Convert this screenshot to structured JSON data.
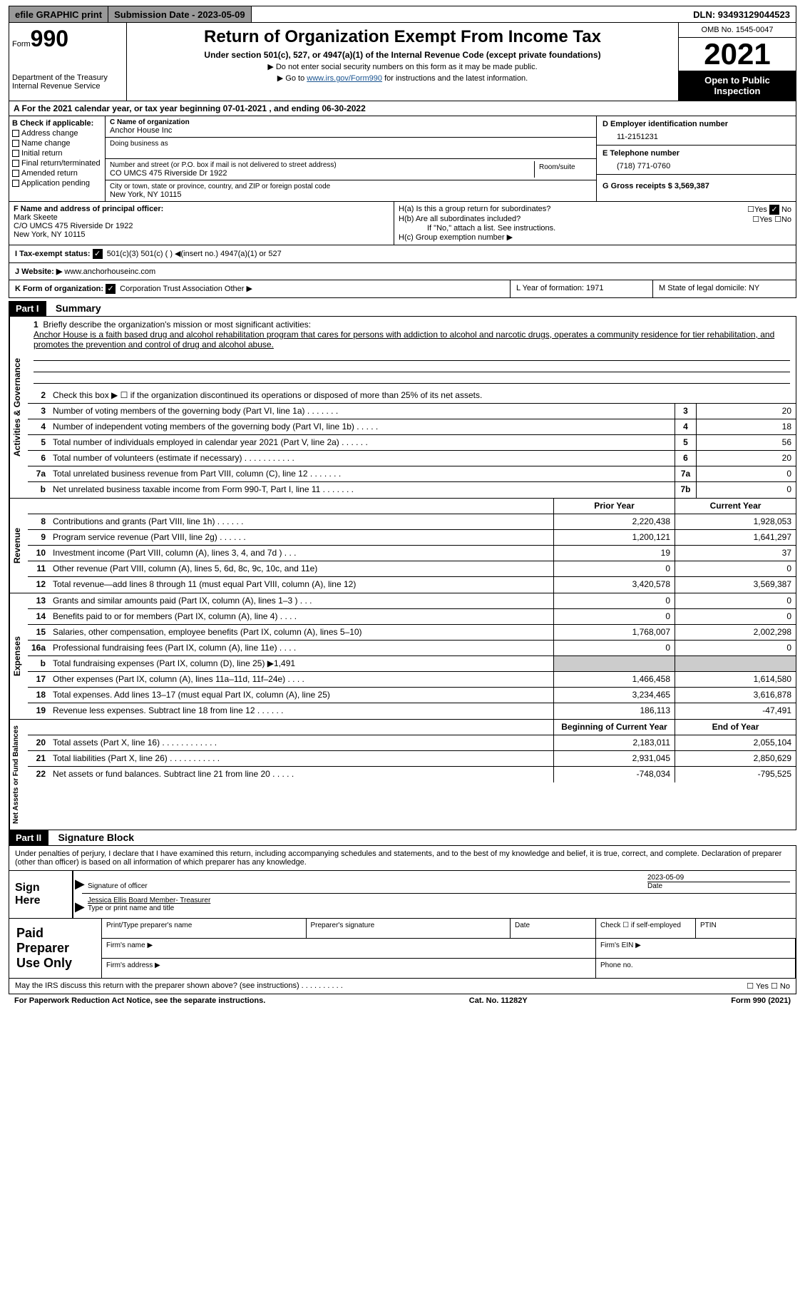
{
  "topbar": {
    "efile": "efile GRAPHIC print",
    "submission": "Submission Date - 2023-05-09",
    "dln": "DLN: 93493129044523"
  },
  "header": {
    "form_label": "Form",
    "form_num": "990",
    "dept": "Department of the Treasury Internal Revenue Service",
    "title": "Return of Organization Exempt From Income Tax",
    "sub": "Under section 501(c), 527, or 4947(a)(1) of the Internal Revenue Code (except private foundations)",
    "arrow1": "▶ Do not enter social security numbers on this form as it may be made public.",
    "arrow2_pre": "▶ Go to ",
    "arrow2_link": "www.irs.gov/Form990",
    "arrow2_post": " for instructions and the latest information.",
    "omb": "OMB No. 1545-0047",
    "year": "2021",
    "open": "Open to Public Inspection"
  },
  "row_a": "A For the 2021 calendar year, or tax year beginning 07-01-2021    , and ending 06-30-2022",
  "col_b": {
    "title": "B Check if applicable:",
    "items": [
      "Address change",
      "Name change",
      "Initial return",
      "Final return/terminated",
      "Amended return",
      "Application pending"
    ]
  },
  "col_c": {
    "c_label": "C Name of organization",
    "c_value": "Anchor House Inc",
    "dba_label": "Doing business as",
    "addr_label": "Number and street (or P.O. box if mail is not delivered to street address)",
    "addr_value": "CO UMCS 475 Riverside Dr 1922",
    "room_label": "Room/suite",
    "city_label": "City or town, state or province, country, and ZIP or foreign postal code",
    "city_value": "New York, NY  10115"
  },
  "col_d": {
    "d_label": "D Employer identification number",
    "d_value": "11-2151231",
    "e_label": "E Telephone number",
    "e_value": "(718) 771-0760",
    "g_label": "G Gross receipts $ 3,569,387"
  },
  "col_f": {
    "label": "F  Name and address of principal officer:",
    "name": "Mark Skeete",
    "addr1": "C/O UMCS 475 Riverside Dr 1922",
    "addr2": "New York, NY  10115"
  },
  "col_h": {
    "ha": "H(a)  Is this a group return for subordinates?",
    "hb": "H(b)  Are all subordinates included?",
    "hnote": "If \"No,\" attach a list. See instructions.",
    "hc": "H(c)  Group exemption number ▶"
  },
  "row_i": {
    "label": "I    Tax-exempt status:",
    "opts": "501(c)(3)         501(c) (  ) ◀(insert no.)         4947(a)(1) or       527"
  },
  "row_j": {
    "label": "J    Website: ▶",
    "value": "  www.anchorhouseinc.com"
  },
  "row_k": {
    "label": "K Form of organization:",
    "opts": "Corporation      Trust      Association      Other ▶"
  },
  "row_l": "L Year of formation: 1971",
  "row_m": "M State of legal domicile: NY",
  "part1": {
    "header": "Part I",
    "title": "Summary"
  },
  "mission": {
    "num": "1",
    "label": "Briefly describe the organization's mission or most significant activities:",
    "text": "Anchor House is a faith based drug and alcohol rehabilitation program that cares for persons with addiction to alcohol and narcotic drugs, operates a community residence for tier rehabilitation, and promotes the prevention and control of drug and alcohol abuse."
  },
  "row2": "Check this box ▶ ☐  if the organization discontinued its operations or disposed of more than 25% of its net assets.",
  "vert_labels": {
    "activities": "Activities & Governance",
    "revenue": "Revenue",
    "expenses": "Expenses",
    "netassets": "Net Assets or Fund Balances"
  },
  "summary_rows": [
    {
      "n": "3",
      "d": "Number of voting members of the governing body (Part VI, line 1a)   .    .    .    .    .    .    .",
      "b": "3",
      "v": "20"
    },
    {
      "n": "4",
      "d": "Number of independent voting members of the governing body (Part VI, line 1b)  .    .    .    .    .",
      "b": "4",
      "v": "18"
    },
    {
      "n": "5",
      "d": "Total number of individuals employed in calendar year 2021 (Part V, line 2a)  .    .    .    .    .    .",
      "b": "5",
      "v": "56"
    },
    {
      "n": "6",
      "d": "Total number of volunteers (estimate if necessary)    .    .    .    .    .    .    .    .    .    .    .",
      "b": "6",
      "v": "20"
    },
    {
      "n": "7a",
      "d": "Total unrelated business revenue from Part VIII, column (C), line 12    .    .    .    .    .    .    .",
      "b": "7a",
      "v": "0"
    },
    {
      "n": "b",
      "d": "Net unrelated business taxable income from Form 990-T, Part I, line 11   .    .    .    .    .    .    .",
      "b": "7b",
      "v": "0"
    }
  ],
  "col_py": "Prior Year",
  "col_cy": "Current Year",
  "revenue_rows": [
    {
      "n": "8",
      "d": "Contributions and grants (Part VIII, line 1h)   .    .    .    .    .    .",
      "py": "2,220,438",
      "cy": "1,928,053"
    },
    {
      "n": "9",
      "d": "Program service revenue (Part VIII, line 2g)    .    .    .    .    .    .",
      "py": "1,200,121",
      "cy": "1,641,297"
    },
    {
      "n": "10",
      "d": "Investment income (Part VIII, column (A), lines 3, 4, and 7d )  .    .    .",
      "py": "19",
      "cy": "37"
    },
    {
      "n": "11",
      "d": "Other revenue (Part VIII, column (A), lines 5, 6d, 8c, 9c, 10c, and 11e)",
      "py": "0",
      "cy": "0"
    },
    {
      "n": "12",
      "d": "Total revenue—add lines 8 through 11 (must equal Part VIII, column (A), line 12)",
      "py": "3,420,578",
      "cy": "3,569,387"
    }
  ],
  "expense_rows": [
    {
      "n": "13",
      "d": "Grants and similar amounts paid (Part IX, column (A), lines 1–3 )  .    .    .",
      "py": "0",
      "cy": "0"
    },
    {
      "n": "14",
      "d": "Benefits paid to or for members (Part IX, column (A), line 4)  .    .    .    .",
      "py": "0",
      "cy": "0"
    },
    {
      "n": "15",
      "d": "Salaries, other compensation, employee benefits (Part IX, column (A), lines 5–10)",
      "py": "1,768,007",
      "cy": "2,002,298"
    },
    {
      "n": "16a",
      "d": "Professional fundraising fees (Part IX, column (A), line 11e)   .    .    .    .",
      "py": "0",
      "cy": "0"
    },
    {
      "n": "b",
      "d": "Total fundraising expenses (Part IX, column (D), line 25) ▶1,491",
      "py": "",
      "cy": "",
      "shade": true
    },
    {
      "n": "17",
      "d": "Other expenses (Part IX, column (A), lines 11a–11d, 11f–24e)   .    .    .    .",
      "py": "1,466,458",
      "cy": "1,614,580"
    },
    {
      "n": "18",
      "d": "Total expenses. Add lines 13–17 (must equal Part IX, column (A), line 25)",
      "py": "3,234,465",
      "cy": "3,616,878"
    },
    {
      "n": "19",
      "d": "Revenue less expenses. Subtract line 18 from line 12  .    .    .    .    .    .",
      "py": "186,113",
      "cy": "-47,491"
    }
  ],
  "col_bcy": "Beginning of Current Year",
  "col_ey": "End of Year",
  "net_rows": [
    {
      "n": "20",
      "d": "Total assets (Part X, line 16) .    .    .    .    .    .    .    .    .    .    .    .",
      "py": "2,183,011",
      "cy": "2,055,104"
    },
    {
      "n": "21",
      "d": "Total liabilities (Part X, line 26) .    .    .    .    .    .    .    .    .    .    .",
      "py": "2,931,045",
      "cy": "2,850,629"
    },
    {
      "n": "22",
      "d": "Net assets or fund balances. Subtract line 21 from line 20  .    .    .    .    .",
      "py": "-748,034",
      "cy": "-795,525"
    }
  ],
  "part2": {
    "header": "Part II",
    "title": "Signature Block"
  },
  "sig": {
    "penalty": "Under penalties of perjury, I declare that I have examined this return, including accompanying schedules and statements, and to the best of my knowledge and belief, it is true, correct, and complete. Declaration of preparer (other than officer) is based on all information of which preparer has any knowledge.",
    "sign_here": "Sign Here",
    "sig_officer": "Signature of officer",
    "date_label": "Date",
    "date_val": "2023-05-09",
    "name": "Jessica Ellis  Board Member- Treasurer",
    "type_label": "Type or print name and title"
  },
  "prep": {
    "label": "Paid Preparer Use Only",
    "h1": "Print/Type preparer's name",
    "h2": "Preparer's signature",
    "h3": "Date",
    "h4_pre": "Check ☐ if self-employed",
    "h5": "PTIN",
    "firm_name": "Firm's name    ▶",
    "firm_ein": "Firm's EIN ▶",
    "firm_addr": "Firm's address ▶",
    "phone": "Phone no."
  },
  "footer": {
    "discuss": "May the IRS discuss this return with the preparer shown above? (see instructions)   .    .    .    .    .    .    .    .    .    .",
    "yn": "☐ Yes   ☐ No",
    "paperwork": "For Paperwork Reduction Act Notice, see the separate instructions.",
    "cat": "Cat. No. 11282Y",
    "formnum": "Form 990 (2021)"
  }
}
